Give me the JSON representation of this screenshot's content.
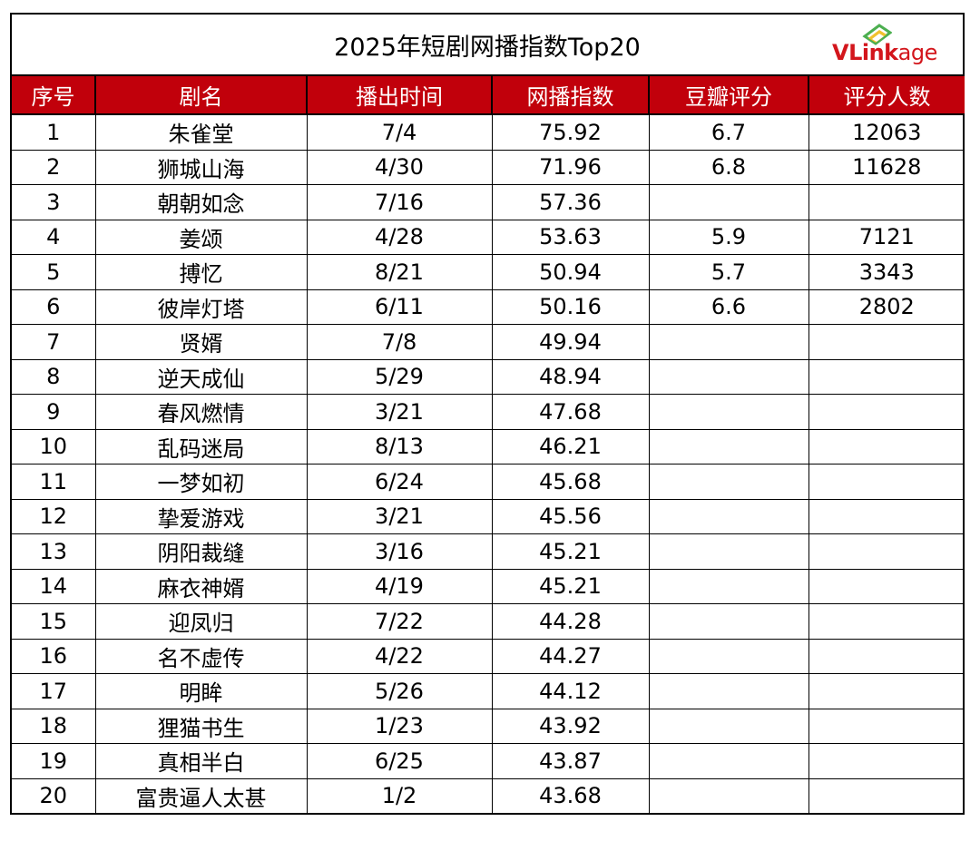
{
  "table": {
    "title": "2025年短剧网播指数Top20",
    "logo_text": "VLinkage",
    "logo_text_head": "VLink",
    "logo_text_tail": "age",
    "colors": {
      "header_background": "#c1000b",
      "header_text": "#ffffff",
      "logo": "#d3161c",
      "logo_mark_green": "#4caf50",
      "logo_mark_yellow": "#f2c12e"
    },
    "columns": [
      "序号",
      "剧名",
      "播出时间",
      "网播指数",
      "豆瓣评分",
      "评分人数"
    ],
    "rows": [
      {
        "rank": "1",
        "name": "朱雀堂",
        "air_date": "7/4",
        "index": "75.92",
        "douban_score": "6.7",
        "rating_count": "12063"
      },
      {
        "rank": "2",
        "name": "狮城山海",
        "air_date": "4/30",
        "index": "71.96",
        "douban_score": "6.8",
        "rating_count": "11628"
      },
      {
        "rank": "3",
        "name": "朝朝如念",
        "air_date": "7/16",
        "index": "57.36",
        "douban_score": "",
        "rating_count": ""
      },
      {
        "rank": "4",
        "name": "姜颂",
        "air_date": "4/28",
        "index": "53.63",
        "douban_score": "5.9",
        "rating_count": "7121"
      },
      {
        "rank": "5",
        "name": "搏忆",
        "air_date": "8/21",
        "index": "50.94",
        "douban_score": "5.7",
        "rating_count": "3343"
      },
      {
        "rank": "6",
        "name": "彼岸灯塔",
        "air_date": "6/11",
        "index": "50.16",
        "douban_score": "6.6",
        "rating_count": "2802"
      },
      {
        "rank": "7",
        "name": "贤婿",
        "air_date": "7/8",
        "index": "49.94",
        "douban_score": "",
        "rating_count": ""
      },
      {
        "rank": "8",
        "name": "逆天成仙",
        "air_date": "5/29",
        "index": "48.94",
        "douban_score": "",
        "rating_count": ""
      },
      {
        "rank": "9",
        "name": "春风燃情",
        "air_date": "3/21",
        "index": "47.68",
        "douban_score": "",
        "rating_count": ""
      },
      {
        "rank": "10",
        "name": "乱码迷局",
        "air_date": "8/13",
        "index": "46.21",
        "douban_score": "",
        "rating_count": ""
      },
      {
        "rank": "11",
        "name": "一梦如初",
        "air_date": "6/24",
        "index": "45.68",
        "douban_score": "",
        "rating_count": ""
      },
      {
        "rank": "12",
        "name": "挚爱游戏",
        "air_date": "3/21",
        "index": "45.56",
        "douban_score": "",
        "rating_count": ""
      },
      {
        "rank": "13",
        "name": "阴阳裁缝",
        "air_date": "3/16",
        "index": "45.21",
        "douban_score": "",
        "rating_count": ""
      },
      {
        "rank": "14",
        "name": "麻衣神婿",
        "air_date": "4/19",
        "index": "45.21",
        "douban_score": "",
        "rating_count": ""
      },
      {
        "rank": "15",
        "name": "迎凤归",
        "air_date": "7/22",
        "index": "44.28",
        "douban_score": "",
        "rating_count": ""
      },
      {
        "rank": "16",
        "name": "名不虚传",
        "air_date": "4/22",
        "index": "44.27",
        "douban_score": "",
        "rating_count": ""
      },
      {
        "rank": "17",
        "name": "明眸",
        "air_date": "5/26",
        "index": "44.12",
        "douban_score": "",
        "rating_count": ""
      },
      {
        "rank": "18",
        "name": "狸猫书生",
        "air_date": "1/23",
        "index": "43.92",
        "douban_score": "",
        "rating_count": ""
      },
      {
        "rank": "19",
        "name": "真相半白",
        "air_date": "6/25",
        "index": "43.87",
        "douban_score": "",
        "rating_count": ""
      },
      {
        "rank": "20",
        "name": "富贵逼人太甚",
        "air_date": "1/2",
        "index": "43.68",
        "douban_score": "",
        "rating_count": ""
      }
    ]
  }
}
